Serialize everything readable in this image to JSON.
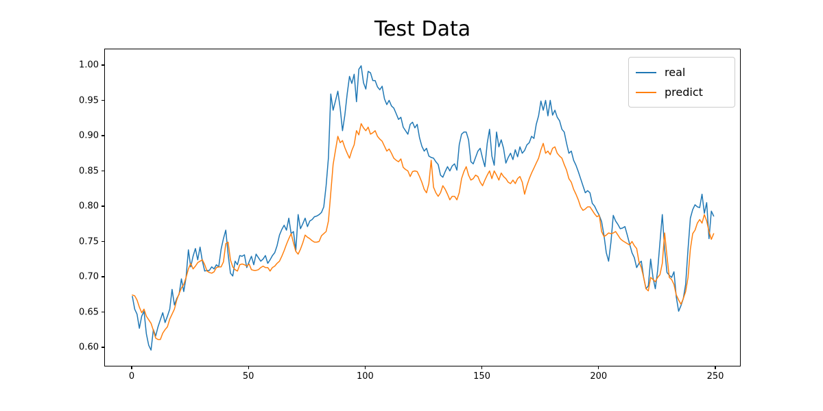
{
  "title": "Test Data",
  "legend": {
    "items": [
      {
        "label": "real",
        "color": "#1f77b4"
      },
      {
        "label": "predict",
        "color": "#ff7f0e"
      }
    ]
  },
  "chart_data": {
    "type": "line",
    "title": "Test Data",
    "xlabel": "",
    "ylabel": "",
    "x_ticks": [
      0,
      50,
      100,
      150,
      200,
      250
    ],
    "y_ticks": [
      0.6,
      0.65,
      0.7,
      0.75,
      0.8,
      0.85,
      0.9,
      0.95,
      1.0
    ],
    "xlim": [
      -11.8,
      260.9
    ],
    "ylim": [
      0.573,
      1.023
    ],
    "grid": false,
    "legend_position": "upper right",
    "x_start": 0,
    "x_step": 1,
    "series": [
      {
        "name": "real",
        "color": "#1f77b4",
        "values": [
          0.673,
          0.655,
          0.648,
          0.628,
          0.645,
          0.652,
          0.62,
          0.604,
          0.597,
          0.626,
          0.617,
          0.63,
          0.64,
          0.65,
          0.636,
          0.645,
          0.655,
          0.683,
          0.661,
          0.67,
          0.676,
          0.698,
          0.68,
          0.7,
          0.739,
          0.715,
          0.73,
          0.741,
          0.725,
          0.743,
          0.723,
          0.709,
          0.71,
          0.71,
          0.715,
          0.712,
          0.718,
          0.715,
          0.74,
          0.755,
          0.767,
          0.733,
          0.706,
          0.702,
          0.723,
          0.718,
          0.731,
          0.73,
          0.732,
          0.714,
          0.722,
          0.73,
          0.718,
          0.733,
          0.728,
          0.723,
          0.726,
          0.731,
          0.72,
          0.725,
          0.731,
          0.735,
          0.745,
          0.76,
          0.768,
          0.774,
          0.767,
          0.784,
          0.762,
          0.765,
          0.738,
          0.789,
          0.769,
          0.776,
          0.784,
          0.772,
          0.78,
          0.782,
          0.786,
          0.787,
          0.789,
          0.792,
          0.8,
          0.83,
          0.87,
          0.96,
          0.937,
          0.95,
          0.964,
          0.94,
          0.908,
          0.93,
          0.96,
          0.985,
          0.975,
          0.988,
          0.949,
          0.995,
          1.0,
          0.976,
          0.967,
          0.992,
          0.99,
          0.979,
          0.979,
          0.97,
          0.966,
          0.971,
          0.953,
          0.945,
          0.951,
          0.943,
          0.94,
          0.932,
          0.924,
          0.927,
          0.913,
          0.908,
          0.903,
          0.917,
          0.92,
          0.912,
          0.917,
          0.898,
          0.886,
          0.879,
          0.883,
          0.872,
          0.87,
          0.869,
          0.864,
          0.86,
          0.845,
          0.842,
          0.85,
          0.857,
          0.851,
          0.858,
          0.861,
          0.852,
          0.888,
          0.903,
          0.906,
          0.906,
          0.895,
          0.864,
          0.861,
          0.87,
          0.879,
          0.883,
          0.869,
          0.857,
          0.89,
          0.91,
          0.872,
          0.859,
          0.906,
          0.885,
          0.895,
          0.883,
          0.862,
          0.87,
          0.876,
          0.867,
          0.881,
          0.871,
          0.885,
          0.876,
          0.88,
          0.888,
          0.891,
          0.9,
          0.897,
          0.917,
          0.929,
          0.95,
          0.937,
          0.951,
          0.929,
          0.951,
          0.93,
          0.937,
          0.927,
          0.922,
          0.91,
          0.906,
          0.89,
          0.876,
          0.879,
          0.866,
          0.859,
          0.85,
          0.84,
          0.83,
          0.82,
          0.823,
          0.82,
          0.805,
          0.801,
          0.794,
          0.788,
          0.779,
          0.76,
          0.735,
          0.723,
          0.75,
          0.788,
          0.78,
          0.775,
          0.769,
          0.77,
          0.772,
          0.76,
          0.747,
          0.735,
          0.728,
          0.714,
          0.72,
          0.723,
          0.7,
          0.684,
          0.688,
          0.726,
          0.7,
          0.684,
          0.71,
          0.75,
          0.789,
          0.74,
          0.707,
          0.703,
          0.7,
          0.708,
          0.672,
          0.652,
          0.66,
          0.67,
          0.69,
          0.74,
          0.784,
          0.796,
          0.803,
          0.8,
          0.799,
          0.818,
          0.791,
          0.806,
          0.755,
          0.794,
          0.787
        ]
      },
      {
        "name": "predict",
        "color": "#ff7f0e",
        "values": [
          0.675,
          0.674,
          0.668,
          0.658,
          0.65,
          0.655,
          0.645,
          0.64,
          0.635,
          0.625,
          0.614,
          0.612,
          0.612,
          0.621,
          0.626,
          0.63,
          0.641,
          0.648,
          0.655,
          0.668,
          0.677,
          0.685,
          0.69,
          0.7,
          0.712,
          0.72,
          0.712,
          0.716,
          0.721,
          0.723,
          0.725,
          0.718,
          0.709,
          0.707,
          0.706,
          0.708,
          0.714,
          0.715,
          0.715,
          0.722,
          0.748,
          0.75,
          0.725,
          0.715,
          0.711,
          0.709,
          0.718,
          0.719,
          0.718,
          0.716,
          0.719,
          0.711,
          0.71,
          0.71,
          0.711,
          0.714,
          0.716,
          0.714,
          0.714,
          0.709,
          0.714,
          0.716,
          0.72,
          0.723,
          0.73,
          0.738,
          0.747,
          0.755,
          0.762,
          0.749,
          0.737,
          0.733,
          0.74,
          0.749,
          0.76,
          0.757,
          0.755,
          0.752,
          0.75,
          0.75,
          0.751,
          0.759,
          0.762,
          0.765,
          0.78,
          0.82,
          0.86,
          0.88,
          0.9,
          0.891,
          0.894,
          0.884,
          0.876,
          0.869,
          0.88,
          0.888,
          0.908,
          0.902,
          0.918,
          0.912,
          0.908,
          0.913,
          0.903,
          0.905,
          0.908,
          0.9,
          0.896,
          0.893,
          0.886,
          0.879,
          0.882,
          0.876,
          0.869,
          0.866,
          0.864,
          0.868,
          0.856,
          0.853,
          0.851,
          0.843,
          0.85,
          0.851,
          0.85,
          0.843,
          0.835,
          0.825,
          0.82,
          0.833,
          0.866,
          0.828,
          0.82,
          0.815,
          0.82,
          0.83,
          0.825,
          0.818,
          0.81,
          0.815,
          0.815,
          0.81,
          0.82,
          0.84,
          0.85,
          0.857,
          0.845,
          0.838,
          0.84,
          0.845,
          0.843,
          0.835,
          0.83,
          0.838,
          0.845,
          0.851,
          0.84,
          0.851,
          0.845,
          0.838,
          0.848,
          0.843,
          0.84,
          0.835,
          0.833,
          0.838,
          0.833,
          0.84,
          0.843,
          0.835,
          0.818,
          0.83,
          0.84,
          0.848,
          0.855,
          0.862,
          0.869,
          0.881,
          0.89,
          0.876,
          0.879,
          0.874,
          0.883,
          0.885,
          0.876,
          0.872,
          0.869,
          0.86,
          0.852,
          0.84,
          0.835,
          0.825,
          0.818,
          0.81,
          0.8,
          0.795,
          0.797,
          0.8,
          0.8,
          0.795,
          0.79,
          0.786,
          0.788,
          0.765,
          0.758,
          0.76,
          0.763,
          0.762,
          0.763,
          0.765,
          0.76,
          0.755,
          0.752,
          0.75,
          0.748,
          0.746,
          0.751,
          0.745,
          0.741,
          0.722,
          0.714,
          0.7,
          0.684,
          0.681,
          0.7,
          0.697,
          0.694,
          0.7,
          0.704,
          0.72,
          0.763,
          0.73,
          0.7,
          0.697,
          0.69,
          0.675,
          0.668,
          0.662,
          0.67,
          0.68,
          0.7,
          0.74,
          0.762,
          0.767,
          0.777,
          0.782,
          0.777,
          0.789,
          0.78,
          0.765,
          0.754,
          0.762
        ]
      }
    ]
  }
}
